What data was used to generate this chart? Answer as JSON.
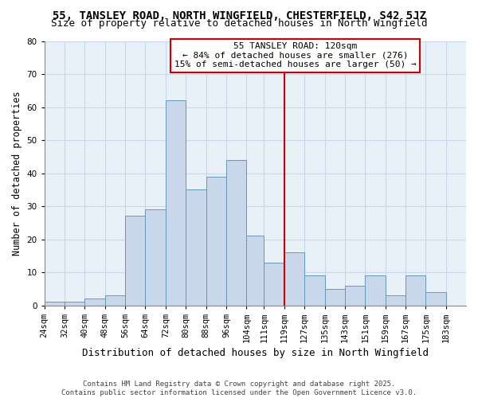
{
  "title": "55, TANSLEY ROAD, NORTH WINGFIELD, CHESTERFIELD, S42 5JZ",
  "subtitle": "Size of property relative to detached houses in North Wingfield",
  "xlabel": "Distribution of detached houses by size in North Wingfield",
  "ylabel": "Number of detached properties",
  "bins": [
    24,
    32,
    40,
    48,
    56,
    64,
    72,
    80,
    88,
    96,
    104,
    111,
    119,
    127,
    135,
    143,
    151,
    159,
    167,
    175,
    183
  ],
  "counts": [
    1,
    1,
    2,
    3,
    27,
    29,
    62,
    35,
    39,
    44,
    21,
    13,
    16,
    9,
    5,
    6,
    9,
    3,
    9,
    4
  ],
  "bar_color": "#c8d8ea",
  "bar_edge_color": "#6699bb",
  "property_line_x": 119,
  "property_line_color": "#cc0000",
  "ylim": [
    0,
    80
  ],
  "yticks": [
    0,
    10,
    20,
    30,
    40,
    50,
    60,
    70,
    80
  ],
  "annotation_title": "55 TANSLEY ROAD: 120sqm",
  "annotation_line1": "← 84% of detached houses are smaller (276)",
  "annotation_line2": "15% of semi-detached houses are larger (50) →",
  "annotation_box_color": "#ffffff",
  "annotation_box_edge_color": "#cc0000",
  "footnote1": "Contains HM Land Registry data © Crown copyright and database right 2025.",
  "footnote2": "Contains public sector information licensed under the Open Government Licence v3.0.",
  "background_color": "#ffffff",
  "grid_color": "#c8d8ea",
  "title_fontsize": 10,
  "subtitle_fontsize": 9,
  "xlabel_fontsize": 9,
  "ylabel_fontsize": 8.5,
  "tick_label_fontsize": 7.5,
  "annotation_fontsize": 8,
  "footnote_fontsize": 6.5
}
